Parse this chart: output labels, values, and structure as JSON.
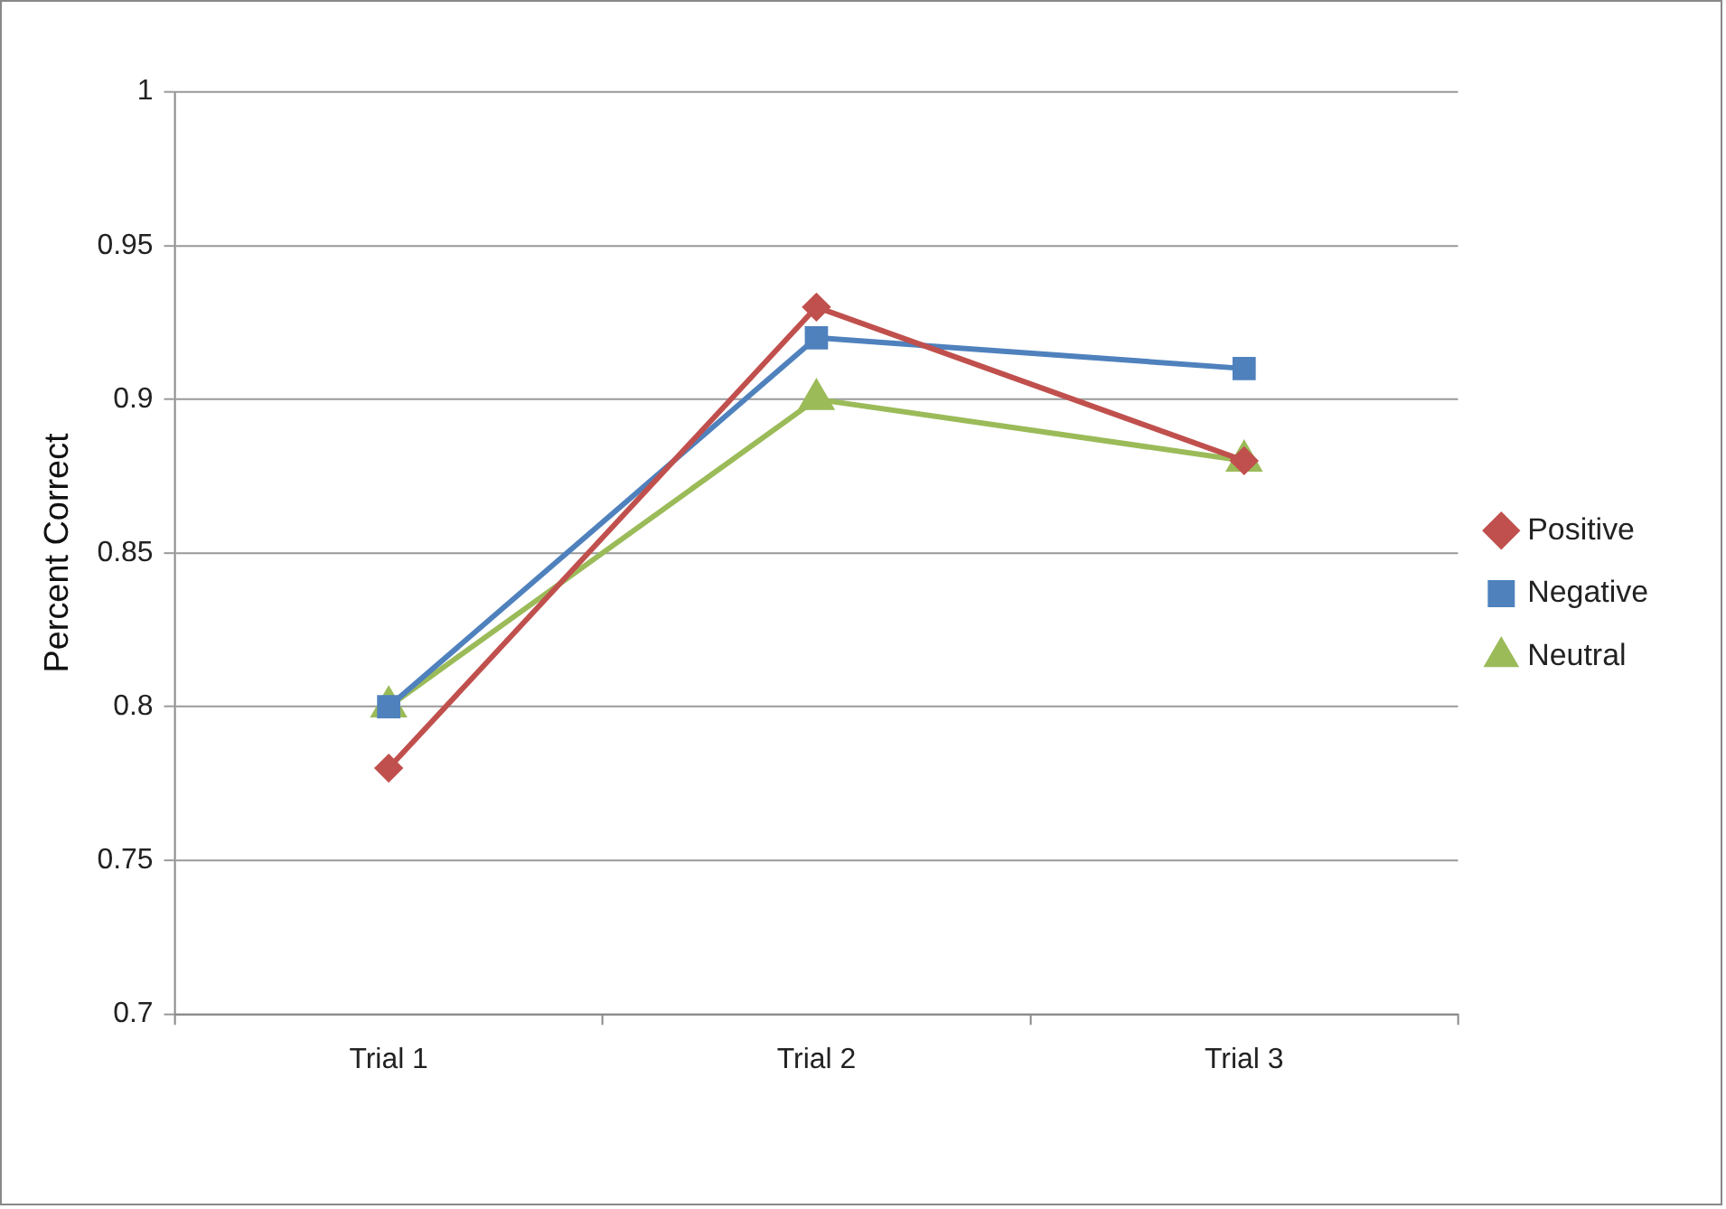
{
  "chart_data": {
    "type": "line",
    "ylabel": "Percent Correct",
    "categories": [
      "Trial 1",
      "Trial 2",
      "Trial 3"
    ],
    "series": [
      {
        "name": "Positive",
        "color": "#c0504d",
        "marker": "diamond",
        "values": [
          0.78,
          0.93,
          0.88
        ]
      },
      {
        "name": "Negative",
        "color": "#4f81bd",
        "marker": "square",
        "values": [
          0.8,
          0.92,
          0.91
        ]
      },
      {
        "name": "Neutral",
        "color": "#9bbb59",
        "marker": "triangle",
        "values": [
          0.8,
          0.9,
          0.88
        ]
      }
    ],
    "ylim": [
      0.7,
      1
    ],
    "yticks": [
      0.7,
      0.75,
      0.8,
      0.85,
      0.9,
      0.95,
      1
    ],
    "grid": "y",
    "legend": "right",
    "line_style": "solid"
  }
}
